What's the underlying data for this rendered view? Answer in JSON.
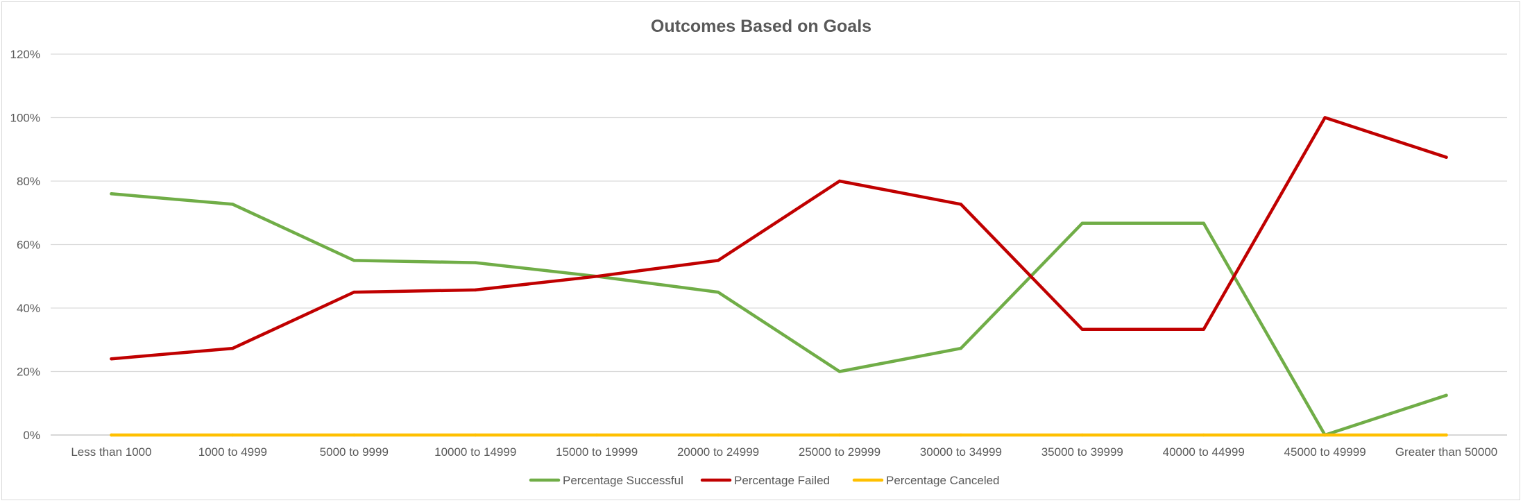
{
  "chart_data": {
    "type": "line",
    "title": "Outcomes Based on Goals",
    "xlabel": "",
    "ylabel": "",
    "categories": [
      "Less than 1000",
      "1000 to 4999",
      "5000 to 9999",
      "10000 to 14999",
      "15000 to 19999",
      "20000 to 24999",
      "25000 to 29999",
      "30000 to 34999",
      "35000 to 39999",
      "40000 to 44999",
      "45000 to 49999",
      "Greater than 50000"
    ],
    "ylim": [
      0,
      120
    ],
    "yticks": [
      0,
      20,
      40,
      60,
      80,
      100,
      120
    ],
    "ytick_labels": [
      "0%",
      "20%",
      "40%",
      "60%",
      "80%",
      "100%",
      "120%"
    ],
    "grid": true,
    "legend_position": "bottom",
    "series": [
      {
        "name": "Percentage Successful",
        "color": "#70AD47",
        "values": [
          76,
          72.7,
          55,
          54.3,
          50,
          45,
          20,
          27.3,
          66.7,
          66.7,
          0,
          12.5
        ]
      },
      {
        "name": "Percentage Failed",
        "color": "#C00000",
        "values": [
          24,
          27.3,
          45,
          45.7,
          50,
          55,
          80,
          72.7,
          33.3,
          33.3,
          100,
          87.5
        ]
      },
      {
        "name": "Percentage Canceled",
        "color": "#FFC000",
        "values": [
          0,
          0,
          0,
          0,
          0,
          0,
          0,
          0,
          0,
          0,
          0,
          0
        ]
      }
    ]
  }
}
